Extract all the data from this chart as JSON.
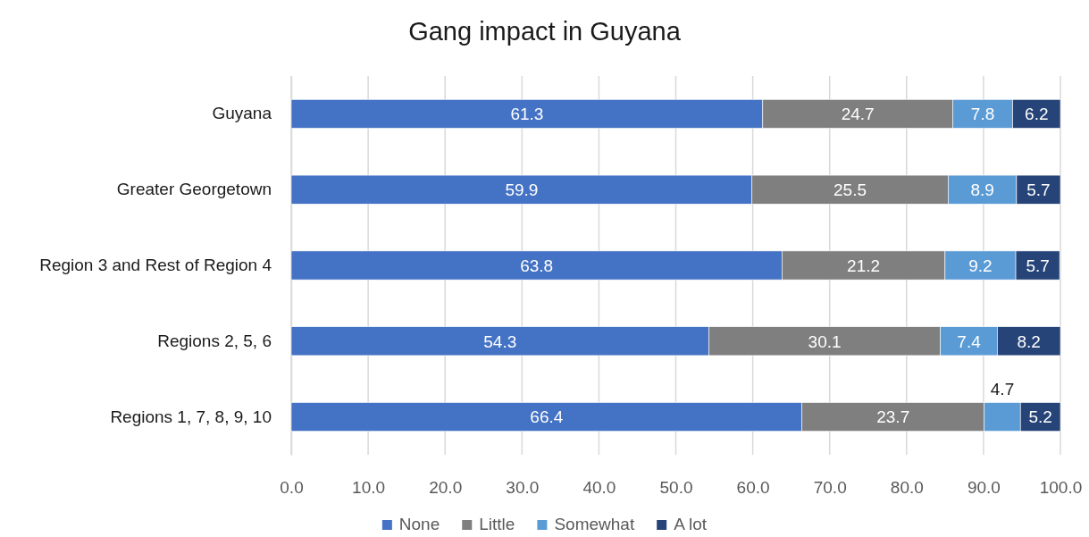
{
  "chart_data": {
    "type": "bar",
    "title": "Gang impact in Guyana",
    "orientation": "horizontal",
    "stacked": true,
    "categories": [
      "Guyana",
      "Greater Georgetown",
      "Region 3 and Rest of Region 4",
      "Regions 2, 5, 6",
      "Regions 1, 7, 8, 9, 10"
    ],
    "series": [
      {
        "name": "None",
        "color": "#4472c4",
        "values": [
          61.3,
          59.9,
          63.8,
          54.3,
          66.4
        ]
      },
      {
        "name": "Little",
        "color": "#7f7f7f",
        "values": [
          24.7,
          25.5,
          21.2,
          30.1,
          23.7
        ]
      },
      {
        "name": "Somewhat",
        "color": "#5b9bd5",
        "values": [
          7.8,
          8.9,
          9.2,
          7.4,
          4.7
        ]
      },
      {
        "name": "A lot",
        "color": "#264478",
        "values": [
          6.2,
          5.7,
          5.7,
          8.2,
          5.2
        ]
      }
    ],
    "xlim": [
      0,
      100
    ],
    "xticks": [
      {
        "value": 0,
        "label": "0.0"
      },
      {
        "value": 10,
        "label": "10.0"
      },
      {
        "value": 20,
        "label": "20.0"
      },
      {
        "value": 30,
        "label": "30.0"
      },
      {
        "value": 40,
        "label": "40.0"
      },
      {
        "value": 50,
        "label": "50.0"
      },
      {
        "value": 60,
        "label": "60.0"
      },
      {
        "value": 70,
        "label": "70.0"
      },
      {
        "value": 80,
        "label": "80.0"
      },
      {
        "value": 90,
        "label": "90.0"
      },
      {
        "value": 100,
        "label": "100.0"
      }
    ],
    "grid": "x",
    "legend": "bottom",
    "data_labels": true
  }
}
